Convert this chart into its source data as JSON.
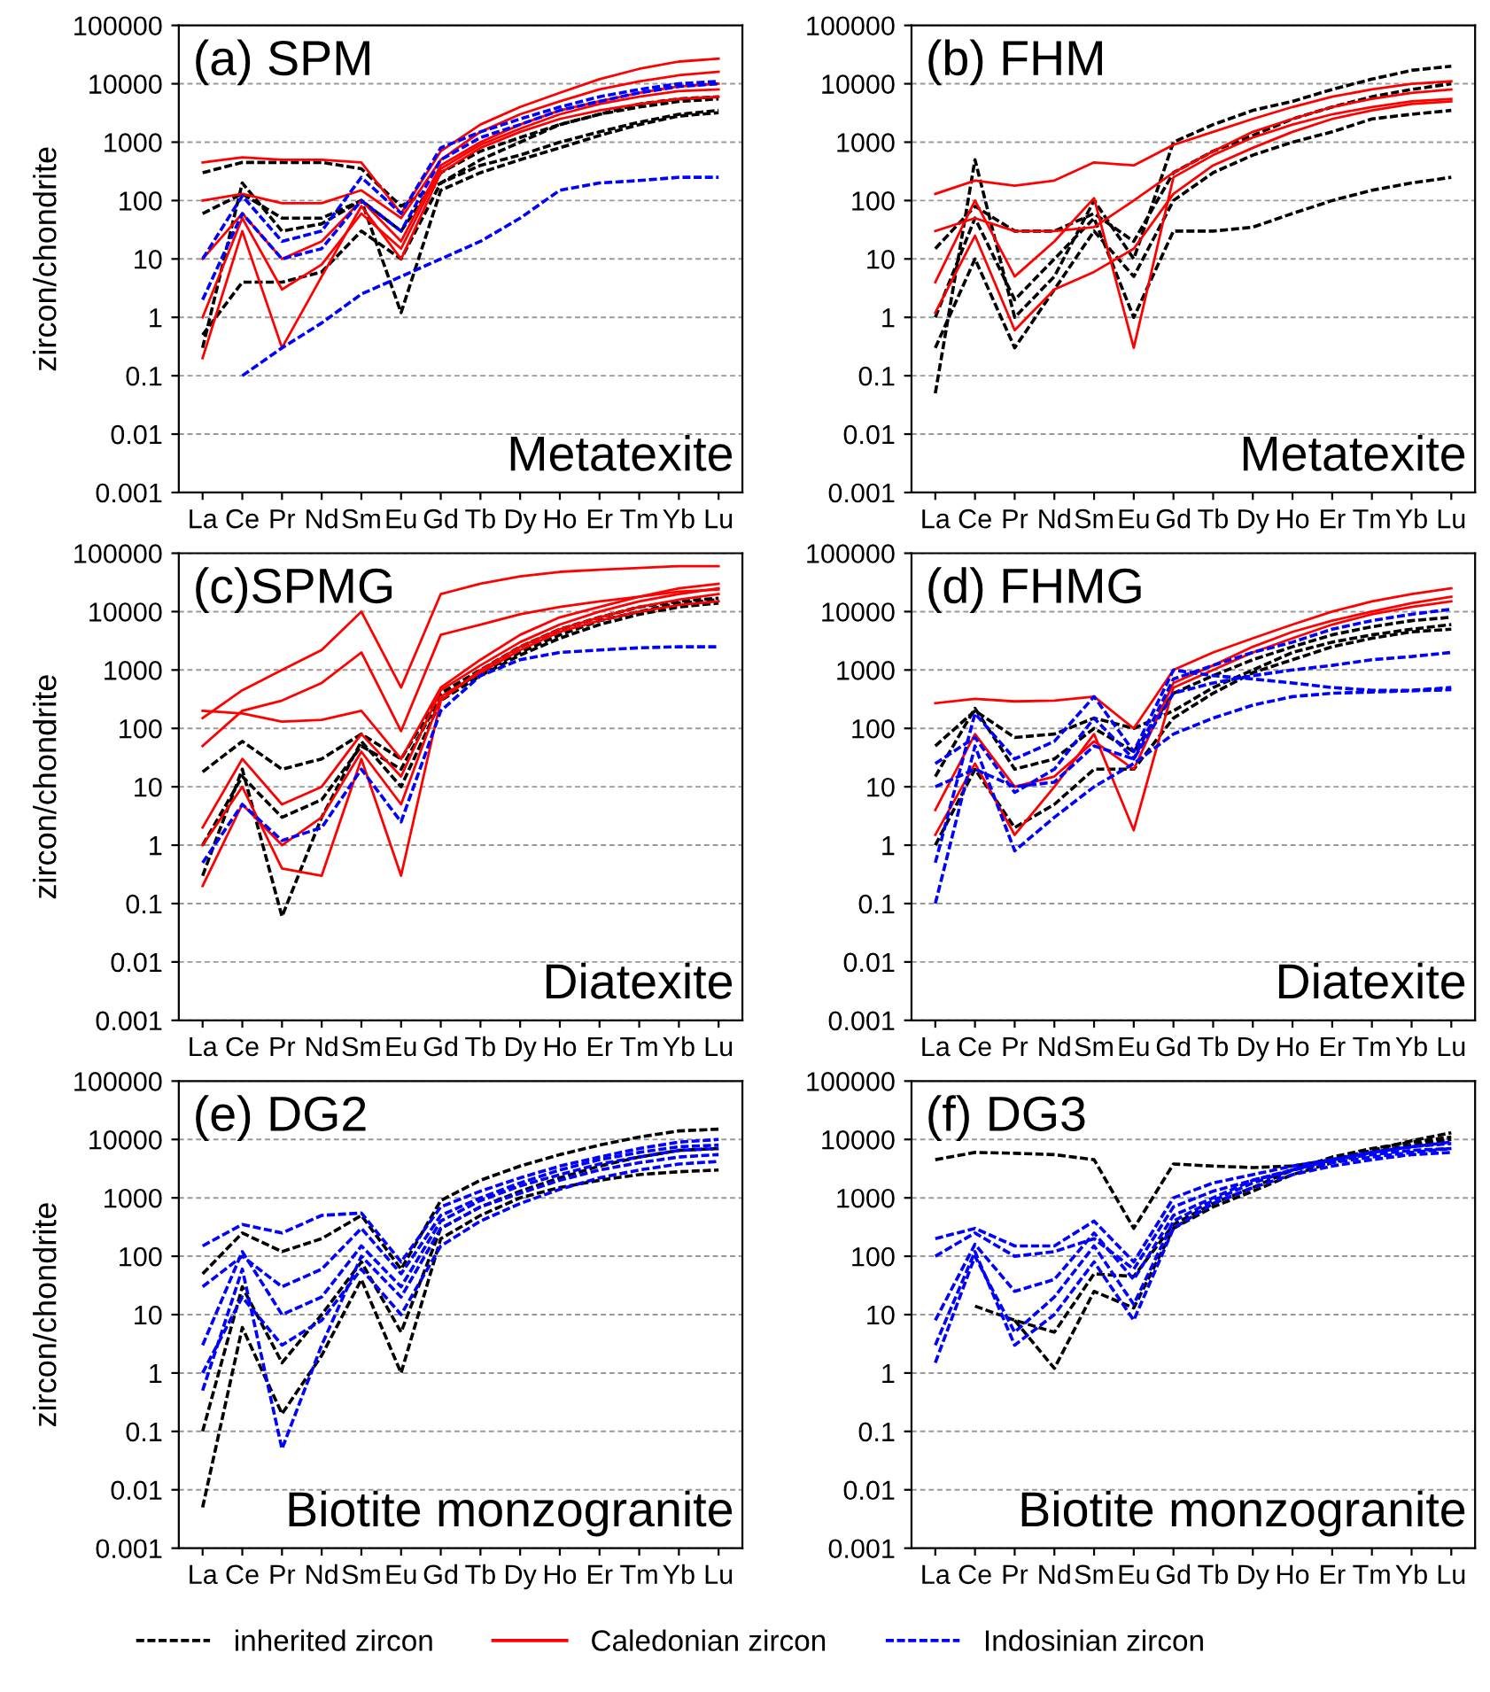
{
  "chart_data": [
    {
      "type": "line",
      "title": "(a) SPM",
      "ylabel": "zircon/chondrite",
      "annotations": [
        "Metatexite"
      ],
      "categories": [
        "La",
        "Ce",
        "Pr",
        "Nd",
        "Sm",
        "Eu",
        "Gd",
        "Tb",
        "Dy",
        "Ho",
        "Er",
        "Tm",
        "Yb",
        "Lu"
      ],
      "log": "y",
      "ylim": [
        0.001,
        100000
      ],
      "yticks": [
        0.001,
        0.01,
        0.1,
        1,
        10,
        100,
        1000,
        10000,
        100000
      ],
      "grid": "y",
      "marker": "none",
      "legend": "bottom",
      "series": [
        {
          "name": "inherited zircon",
          "color": "#000000",
          "line_style": "dashed",
          "values": [
            300,
            450,
            450,
            450,
            350,
            80,
            200,
            400,
            600,
            1000,
            1500,
            2200,
            3000,
            3500
          ]
        },
        {
          "color": "#000000",
          "line_style": "dashed",
          "values": [
            60,
            130,
            50,
            50,
            100,
            30,
            300,
            700,
            1200,
            2000,
            3000,
            4000,
            5000,
            5500
          ]
        },
        {
          "color": "#000000",
          "line_style": "dashed",
          "values": [
            0.3,
            200,
            30,
            40,
            100,
            1.2,
            150,
            300,
            500,
            800,
            1300,
            2000,
            2800,
            3200
          ]
        },
        {
          "color": "#000000",
          "line_style": "dashed",
          "values": [
            0.5,
            4,
            4,
            6,
            30,
            10,
            200,
            500,
            1000,
            2000,
            3000,
            4500,
            5500,
            6000
          ]
        },
        {
          "name": "Caledonian zircon",
          "color": "#ff0000",
          "line_style": "solid",
          "values": [
            450,
            550,
            500,
            500,
            450,
            60,
            700,
            2000,
            4000,
            7000,
            12000,
            18000,
            24000,
            27000
          ]
        },
        {
          "color": "#ff0000",
          "line_style": "solid",
          "values": [
            100,
            130,
            90,
            90,
            150,
            50,
            500,
            1500,
            3000,
            5000,
            8000,
            11000,
            14000,
            16000
          ]
        },
        {
          "color": "#ff0000",
          "line_style": "solid",
          "values": [
            10,
            60,
            10,
            20,
            100,
            20,
            400,
            1000,
            2000,
            3500,
            5000,
            7000,
            9000,
            10000
          ]
        },
        {
          "color": "#ff0000",
          "line_style": "solid",
          "values": [
            0.2,
            30,
            0.3,
            5,
            80,
            10,
            300,
            800,
            1500,
            2500,
            3500,
            4500,
            5500,
            6000
          ]
        },
        {
          "color": "#ff0000",
          "line_style": "solid",
          "values": [
            1,
            50,
            3,
            8,
            60,
            15,
            350,
            900,
            1700,
            3000,
            4500,
            6000,
            7500,
            8000
          ]
        },
        {
          "name": "Indosinian zircon",
          "color": "#0000ff",
          "line_style": "dashed",
          "values": [
            10,
            120,
            20,
            30,
            250,
            60,
            800,
            1500,
            2500,
            4000,
            6000,
            8000,
            10000,
            11000
          ]
        },
        {
          "color": "#0000ff",
          "line_style": "dashed",
          "values": [
            2,
            60,
            10,
            15,
            100,
            30,
            500,
            1200,
            2000,
            3500,
            5000,
            7000,
            9000,
            10000
          ]
        },
        {
          "color": "#0000ff",
          "line_style": "dashed",
          "values": [
            null,
            0.1,
            0.3,
            0.8,
            2.5,
            5,
            10,
            20,
            50,
            150,
            200,
            220,
            250,
            250
          ]
        }
      ]
    },
    {
      "type": "line",
      "title": "(b) FHM",
      "annotations": [
        "Metatexite"
      ],
      "categories": [
        "La",
        "Ce",
        "Pr",
        "Nd",
        "Sm",
        "Eu",
        "Gd",
        "Tb",
        "Dy",
        "Ho",
        "Er",
        "Tm",
        "Yb",
        "Lu"
      ],
      "log": "y",
      "ylim": [
        0.001,
        100000
      ],
      "yticks": [
        0.001,
        0.01,
        0.1,
        1,
        10,
        100,
        1000,
        10000,
        100000
      ],
      "grid": "y",
      "marker": "none",
      "series": [
        {
          "color": "#000000",
          "line_style": "dashed",
          "values": [
            0.05,
            500,
            1,
            5,
            100,
            10,
            1000,
            2000,
            3500,
            5000,
            8000,
            12000,
            17000,
            20000
          ]
        },
        {
          "color": "#000000",
          "line_style": "dashed",
          "values": [
            1,
            50,
            2,
            10,
            50,
            1,
            30,
            30,
            35,
            60,
            100,
            150,
            200,
            250
          ]
        },
        {
          "color": "#000000",
          "line_style": "dashed",
          "values": [
            15,
            80,
            30,
            30,
            60,
            20,
            300,
            700,
            1300,
            2500,
            4000,
            6000,
            8000,
            10000
          ]
        },
        {
          "color": "#000000",
          "line_style": "dashed",
          "values": [
            0.3,
            10,
            0.3,
            3,
            30,
            5,
            100,
            300,
            600,
            1000,
            1500,
            2500,
            3000,
            3500
          ]
        },
        {
          "color": "#ff0000",
          "line_style": "solid",
          "values": [
            130,
            220,
            180,
            220,
            450,
            400,
            900,
            1500,
            2500,
            4000,
            6000,
            8000,
            10000,
            11000
          ]
        },
        {
          "color": "#ff0000",
          "line_style": "solid",
          "values": [
            30,
            50,
            30,
            30,
            35,
            100,
            300,
            700,
            1500,
            2500,
            4000,
            5500,
            7000,
            8000
          ]
        },
        {
          "color": "#ff0000",
          "line_style": "solid",
          "values": [
            4,
            100,
            5,
            20,
            110,
            0.3,
            250,
            600,
            1200,
            2000,
            3000,
            4000,
            5000,
            5500
          ]
        },
        {
          "color": "#ff0000",
          "line_style": "solid",
          "values": [
            1.2,
            25,
            0.6,
            3,
            6,
            15,
            130,
            400,
            800,
            1500,
            2500,
            3500,
            4500,
            5000
          ]
        }
      ]
    },
    {
      "type": "line",
      "title": "(c)SPMG",
      "ylabel": "zircon/chondrite",
      "annotations": [
        "Diatexite"
      ],
      "categories": [
        "La",
        "Ce",
        "Pr",
        "Nd",
        "Sm",
        "Eu",
        "Gd",
        "Tb",
        "Dy",
        "Ho",
        "Er",
        "Tm",
        "Yb",
        "Lu"
      ],
      "log": "y",
      "ylim": [
        0.001,
        100000
      ],
      "yticks": [
        0.001,
        0.01,
        0.1,
        1,
        10,
        100,
        1000,
        10000,
        100000
      ],
      "grid": "y",
      "marker": "none",
      "series": [
        {
          "color": "#000000",
          "line_style": "dashed",
          "values": [
            18,
            60,
            20,
            30,
            80,
            30,
            400,
            1000,
            2500,
            5000,
            8000,
            12000,
            15000,
            17000
          ]
        },
        {
          "color": "#000000",
          "line_style": "dashed",
          "values": [
            0.3,
            20,
            0.06,
            3,
            60,
            10,
            300,
            800,
            1800,
            3500,
            6000,
            9000,
            12000,
            14000
          ]
        },
        {
          "color": "#000000",
          "line_style": "dashed",
          "values": [
            1,
            15,
            3,
            6,
            50,
            20,
            350,
            900,
            2000,
            4000,
            7000,
            10000,
            14000,
            16000
          ]
        },
        {
          "color": "#ff0000",
          "line_style": "solid",
          "values": [
            150,
            450,
            1000,
            2200,
            10000,
            500,
            20000,
            30000,
            40000,
            48000,
            52000,
            56000,
            60000,
            60000
          ]
        },
        {
          "color": "#ff0000",
          "line_style": "solid",
          "values": [
            50,
            200,
            300,
            600,
            2000,
            90,
            4000,
            6000,
            9000,
            12000,
            15000,
            18000,
            22000,
            24000
          ]
        },
        {
          "color": "#ff0000",
          "line_style": "solid",
          "values": [
            200,
            180,
            130,
            140,
            200,
            30,
            500,
            1500,
            4000,
            8000,
            12000,
            18000,
            25000,
            30000
          ]
        },
        {
          "color": "#ff0000",
          "line_style": "solid",
          "values": [
            1,
            10,
            0.4,
            0.3,
            30,
            0.3,
            300,
            1000,
            2500,
            5000,
            8000,
            12000,
            16000,
            20000
          ]
        },
        {
          "color": "#ff0000",
          "line_style": "solid",
          "values": [
            2,
            30,
            5,
            10,
            80,
            15,
            450,
            1200,
            3000,
            6000,
            10000,
            15000,
            20000,
            25000
          ]
        },
        {
          "color": "#ff0000",
          "line_style": "solid",
          "values": [
            0.2,
            5,
            1,
            3,
            40,
            5,
            350,
            900,
            2200,
            4500,
            7000,
            10000,
            13000,
            15000
          ]
        },
        {
          "color": "#0000ff",
          "line_style": "dashed",
          "values": [
            0.5,
            5,
            1.2,
            2,
            20,
            2.5,
            200,
            800,
            1500,
            2000,
            2200,
            2400,
            2500,
            2500
          ]
        }
      ]
    },
    {
      "type": "line",
      "title": "(d) FHMG",
      "annotations": [
        "Diatexite"
      ],
      "categories": [
        "La",
        "Ce",
        "Pr",
        "Nd",
        "Sm",
        "Eu",
        "Gd",
        "Tb",
        "Dy",
        "Ho",
        "Er",
        "Tm",
        "Yb",
        "Lu"
      ],
      "log": "y",
      "ylim": [
        0.001,
        100000
      ],
      "yticks": [
        0.001,
        0.01,
        0.1,
        1,
        10,
        100,
        1000,
        10000,
        100000
      ],
      "grid": "y",
      "marker": "none",
      "series": [
        {
          "color": "#000000",
          "line_style": "dashed",
          "values": [
            50,
            200,
            70,
            80,
            150,
            100,
            200,
            500,
            1000,
            2000,
            3000,
            4000,
            5000,
            6000
          ]
        },
        {
          "color": "#000000",
          "line_style": "dashed",
          "values": [
            1,
            20,
            2,
            5,
            20,
            20,
            150,
            400,
            900,
            1500,
            2500,
            3500,
            4500,
            5000
          ]
        },
        {
          "color": "#000000",
          "line_style": "dashed",
          "values": [
            15,
            220,
            20,
            30,
            100,
            40,
            400,
            800,
            1500,
            2500,
            4000,
            5500,
            7000,
            8000
          ]
        },
        {
          "color": "#ff0000",
          "line_style": "solid",
          "values": [
            270,
            320,
            290,
            300,
            350,
            100,
            1000,
            2000,
            3500,
            6000,
            10000,
            15000,
            20000,
            25000
          ]
        },
        {
          "color": "#ff0000",
          "line_style": "solid",
          "values": [
            1.5,
            25,
            1.5,
            10,
            80,
            1.8,
            500,
            1000,
            2000,
            3500,
            6000,
            9000,
            12000,
            15000
          ]
        },
        {
          "color": "#ff0000",
          "line_style": "solid",
          "values": [
            4,
            80,
            10,
            15,
            60,
            20,
            600,
            1200,
            2500,
            4500,
            7000,
            10000,
            14000,
            18000
          ]
        },
        {
          "color": "#0000ff",
          "line_style": "dashed",
          "values": [
            0.1,
            50,
            0.8,
            3,
            10,
            25,
            80,
            150,
            250,
            350,
            400,
            420,
            440,
            460
          ]
        },
        {
          "color": "#0000ff",
          "line_style": "dashed",
          "values": [
            0.5,
            180,
            30,
            60,
            350,
            40,
            1000,
            800,
            700,
            600,
            500,
            450,
            450,
            500
          ]
        },
        {
          "color": "#0000ff",
          "line_style": "dashed",
          "values": [
            25,
            70,
            8,
            20,
            150,
            30,
            700,
            1200,
            2000,
            3000,
            5000,
            7000,
            9000,
            11000
          ]
        },
        {
          "color": "#0000ff",
          "line_style": "dashed",
          "values": [
            10,
            20,
            10,
            12,
            50,
            30,
            400,
            600,
            800,
            1000,
            1200,
            1500,
            1700,
            2000
          ]
        }
      ]
    },
    {
      "type": "line",
      "title": "(e) DG2",
      "ylabel": "zircon/chondrite",
      "annotations": [
        "Biotite monzogranite"
      ],
      "categories": [
        "La",
        "Ce",
        "Pr",
        "Nd",
        "Sm",
        "Eu",
        "Gd",
        "Tb",
        "Dy",
        "Ho",
        "Er",
        "Tm",
        "Yb",
        "Lu"
      ],
      "log": "y",
      "ylim": [
        0.001,
        100000
      ],
      "yticks": [
        0.001,
        0.01,
        0.1,
        1,
        10,
        100,
        1000,
        10000,
        100000
      ],
      "grid": "y",
      "marker": "none",
      "series": [
        {
          "color": "#000000",
          "line_style": "dashed",
          "values": [
            0.005,
            6,
            0.2,
            2,
            40,
            1,
            200,
            500,
            1000,
            1500,
            2000,
            2500,
            2800,
            3000
          ]
        },
        {
          "color": "#000000",
          "line_style": "dashed",
          "values": [
            50,
            250,
            120,
            200,
            500,
            60,
            900,
            2000,
            3500,
            5500,
            8000,
            11000,
            14000,
            15000
          ]
        },
        {
          "color": "#000000",
          "line_style": "dashed",
          "values": [
            0.1,
            30,
            1.5,
            10,
            80,
            5,
            300,
            700,
            1300,
            2200,
            3500,
            5000,
            6500,
            7000
          ]
        },
        {
          "color": "#0000ff",
          "line_style": "dashed",
          "values": [
            150,
            350,
            250,
            500,
            550,
            80,
            700,
            1300,
            2200,
            3500,
            5000,
            7000,
            9000,
            10000
          ]
        },
        {
          "color": "#0000ff",
          "line_style": "dashed",
          "values": [
            30,
            100,
            30,
            60,
            300,
            50,
            500,
            1000,
            1800,
            3000,
            4500,
            6000,
            7500,
            8000
          ]
        },
        {
          "color": "#0000ff",
          "line_style": "dashed",
          "values": [
            0.5,
            60,
            0.05,
            3,
            100,
            20,
            300,
            700,
            1200,
            2000,
            3000,
            4000,
            5000,
            5500
          ]
        },
        {
          "color": "#0000ff",
          "line_style": "dashed",
          "values": [
            3,
            120,
            10,
            20,
            150,
            30,
            400,
            900,
            1600,
            2500,
            3800,
            5000,
            6500,
            7000
          ]
        },
        {
          "color": "#0000ff",
          "line_style": "dashed",
          "values": [
            1,
            20,
            3,
            8,
            60,
            10,
            150,
            400,
            800,
            1400,
            2200,
            3000,
            3800,
            4200
          ]
        }
      ]
    },
    {
      "type": "line",
      "title": "(f) DG3",
      "annotations": [
        "Biotite monzogranite"
      ],
      "categories": [
        "La",
        "Ce",
        "Pr",
        "Nd",
        "Sm",
        "Eu",
        "Gd",
        "Tb",
        "Dy",
        "Ho",
        "Er",
        "Tm",
        "Yb",
        "Lu"
      ],
      "log": "y",
      "ylim": [
        0.001,
        100000
      ],
      "yticks": [
        0.001,
        0.01,
        0.1,
        1,
        10,
        100,
        1000,
        10000,
        100000
      ],
      "grid": "y",
      "marker": "none",
      "series": [
        {
          "color": "#000000",
          "line_style": "dashed",
          "values": [
            4500,
            6000,
            5800,
            5500,
            4500,
            300,
            3800,
            3500,
            3300,
            3500,
            4500,
            6500,
            9500,
            13000
          ]
        },
        {
          "color": "#000000",
          "line_style": "dashed",
          "values": [
            null,
            14,
            8,
            5,
            50,
            45,
            350,
            800,
            1500,
            3000,
            5000,
            7000,
            9000,
            11000
          ]
        },
        {
          "color": "#000000",
          "line_style": "dashed",
          "values": [
            null,
            null,
            8,
            1.2,
            25,
            13,
            300,
            700,
            1300,
            2500,
            4000,
            6000,
            8000,
            10000
          ]
        },
        {
          "color": "#0000ff",
          "line_style": "dashed",
          "values": [
            200,
            300,
            150,
            150,
            400,
            80,
            1000,
            1800,
            2500,
            3500,
            4500,
            5500,
            6500,
            7000
          ]
        },
        {
          "color": "#0000ff",
          "line_style": "dashed",
          "values": [
            100,
            250,
            100,
            120,
            200,
            60,
            700,
            1300,
            2000,
            3000,
            4000,
            5000,
            6000,
            7000
          ]
        },
        {
          "color": "#0000ff",
          "line_style": "dashed",
          "values": [
            8,
            160,
            25,
            40,
            250,
            40,
            500,
            1000,
            2000,
            3000,
            4500,
            6000,
            7500,
            8500
          ]
        },
        {
          "color": "#0000ff",
          "line_style": "dashed",
          "values": [
            1.5,
            100,
            5,
            20,
            150,
            15,
            400,
            900,
            1800,
            3000,
            4500,
            6000,
            7500,
            9000
          ]
        },
        {
          "color": "#0000ff",
          "line_style": "dashed",
          "values": [
            3,
            120,
            3,
            10,
            80,
            8,
            300,
            800,
            1500,
            2500,
            3500,
            4500,
            5500,
            6000
          ]
        }
      ]
    }
  ]
}
